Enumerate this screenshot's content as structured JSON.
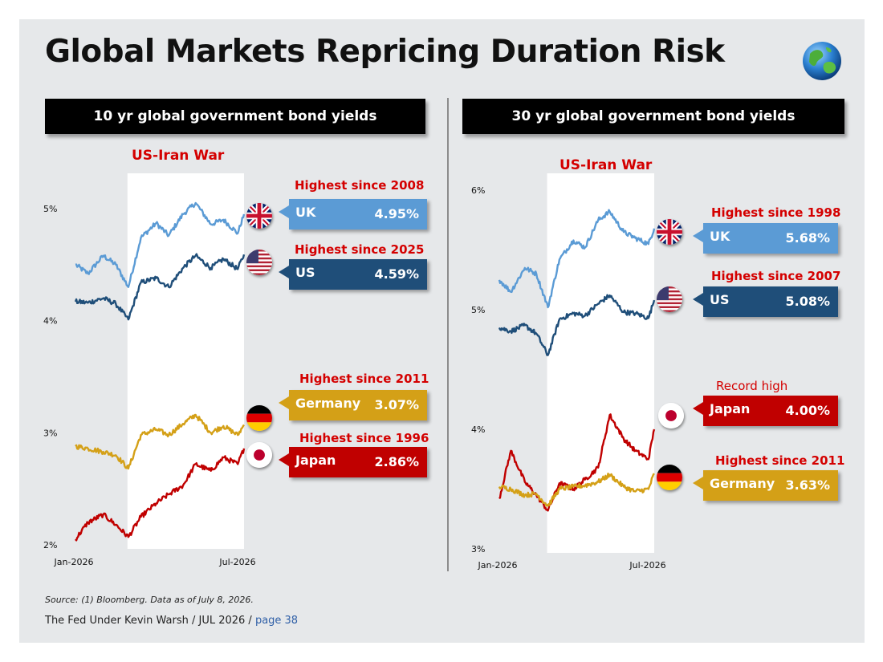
{
  "title": "Global Markets Repricing Duration Risk",
  "icons": {
    "globe": "globe-icon"
  },
  "panels": [
    {
      "header": "10 yr global government bond yields",
      "war_label": "US-Iran War"
    },
    {
      "header": "30 yr global government bond yields",
      "war_label": "US-Iran War"
    }
  ],
  "colors": {
    "uk": "#5b9bd5",
    "us": "#1f4e79",
    "germany": "#d4a017",
    "japan": "#c00000",
    "annotation": "#d40000"
  },
  "callouts": {
    "left": [
      {
        "country": "UK",
        "value": "4.95%",
        "annotation": "Highest since 2008",
        "flag": "uk-flag-icon"
      },
      {
        "country": "US",
        "value": "4.59%",
        "annotation": "Highest since 2025",
        "flag": "us-flag-icon"
      },
      {
        "country": "Germany",
        "value": "3.07%",
        "annotation": "Highest since 2011",
        "flag": "germany-flag-icon"
      },
      {
        "country": "Japan",
        "value": "2.86%",
        "annotation": "Highest since 1996",
        "flag": "japan-flag-icon"
      }
    ],
    "right": [
      {
        "country": "UK",
        "value": "5.68%",
        "annotation": "Highest since 1998",
        "flag": "uk-flag-icon"
      },
      {
        "country": "US",
        "value": "5.08%",
        "annotation": "Highest since 2007",
        "flag": "us-flag-icon"
      },
      {
        "country": "Japan",
        "value": "4.00%",
        "annotation": "Record high",
        "flag": "japan-flag-icon"
      },
      {
        "country": "Germany",
        "value": "3.63%",
        "annotation": "Highest since 2011",
        "flag": "germany-flag-icon"
      }
    ]
  },
  "source": "Source: (1) Bloomberg. Data as of July 8, 2026.",
  "footer": {
    "text": "The Fed Under Kevin Warsh / JUL 2026 / ",
    "page": "page 38"
  },
  "chart_data": [
    {
      "type": "line",
      "title": "10 yr global government bond yields",
      "x_tick_labels": [
        "Jan-2026",
        "Jul-2026"
      ],
      "xlim": [
        "2026-01-01",
        "2026-07-08"
      ],
      "ylim": [
        2,
        5.2
      ],
      "y_ticks": [
        2,
        3,
        4,
        5
      ],
      "y_tick_labels": [
        "2%",
        "3%",
        "4%",
        "5%"
      ],
      "shaded_region": {
        "label": "US-Iran War",
        "start": "2026-02-28",
        "end": "2026-07-08"
      },
      "series_dates": [
        "2026-01-01",
        "2026-01-15",
        "2026-02-01",
        "2026-02-15",
        "2026-03-01",
        "2026-03-15",
        "2026-04-01",
        "2026-04-15",
        "2026-05-01",
        "2026-05-15",
        "2026-06-01",
        "2026-06-15",
        "2026-07-01",
        "2026-07-08"
      ],
      "series": [
        {
          "name": "UK",
          "values": [
            4.5,
            4.42,
            4.58,
            4.5,
            4.3,
            4.74,
            4.87,
            4.76,
            4.95,
            5.05,
            4.86,
            4.9,
            4.78,
            4.95
          ]
        },
        {
          "name": "US",
          "values": [
            4.17,
            4.16,
            4.2,
            4.15,
            4.01,
            4.34,
            4.38,
            4.3,
            4.47,
            4.58,
            4.47,
            4.55,
            4.46,
            4.59
          ]
        },
        {
          "name": "Germany",
          "values": [
            2.88,
            2.86,
            2.83,
            2.8,
            2.68,
            2.98,
            3.03,
            2.98,
            3.08,
            3.16,
            3.0,
            3.06,
            2.98,
            3.07
          ]
        },
        {
          "name": "Japan",
          "values": [
            2.05,
            2.2,
            2.27,
            2.18,
            2.07,
            2.25,
            2.37,
            2.45,
            2.53,
            2.72,
            2.66,
            2.78,
            2.72,
            2.86
          ]
        }
      ]
    },
    {
      "type": "line",
      "title": "30 yr global government bond yields",
      "x_tick_labels": [
        "Jan-2026",
        "Jul-2026"
      ],
      "xlim": [
        "2026-01-01",
        "2026-07-08"
      ],
      "ylim": [
        3,
        6
      ],
      "y_ticks": [
        3,
        4,
        5,
        6
      ],
      "y_tick_labels": [
        "3%",
        "4%",
        "5%",
        "6%"
      ],
      "shaded_region": {
        "label": "US-Iran War",
        "start": "2026-02-28",
        "end": "2026-07-08"
      },
      "series_dates": [
        "2026-01-01",
        "2026-01-15",
        "2026-02-01",
        "2026-02-15",
        "2026-03-01",
        "2026-03-15",
        "2026-04-01",
        "2026-04-15",
        "2026-05-01",
        "2026-05-15",
        "2026-06-01",
        "2026-06-15",
        "2026-07-01",
        "2026-07-08"
      ],
      "series": [
        {
          "name": "UK",
          "values": [
            5.25,
            5.15,
            5.35,
            5.3,
            5.02,
            5.42,
            5.58,
            5.52,
            5.75,
            5.82,
            5.65,
            5.6,
            5.55,
            5.68
          ]
        },
        {
          "name": "US",
          "values": [
            4.85,
            4.82,
            4.87,
            4.8,
            4.62,
            4.92,
            4.97,
            4.95,
            5.05,
            5.12,
            4.98,
            4.97,
            4.93,
            5.08
          ]
        },
        {
          "name": "Japan",
          "values": [
            3.42,
            3.82,
            3.56,
            3.45,
            3.32,
            3.55,
            3.5,
            3.58,
            3.68,
            4.12,
            3.92,
            3.82,
            3.75,
            4.0
          ]
        },
        {
          "name": "Germany",
          "values": [
            3.52,
            3.5,
            3.45,
            3.46,
            3.36,
            3.5,
            3.52,
            3.53,
            3.56,
            3.62,
            3.52,
            3.48,
            3.5,
            3.63
          ]
        }
      ]
    }
  ]
}
